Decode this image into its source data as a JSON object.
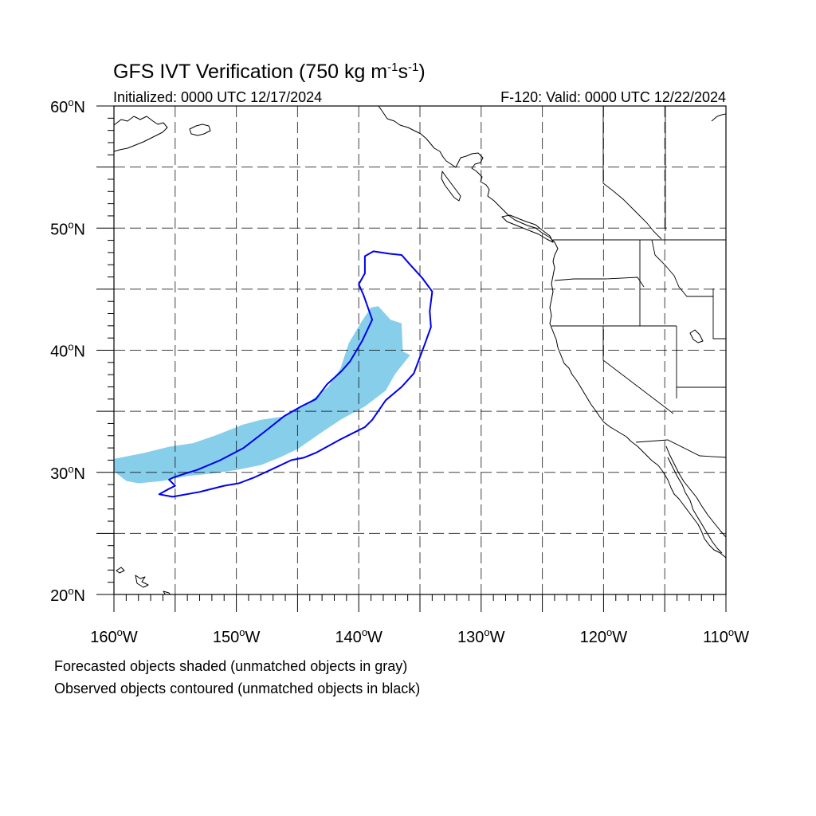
{
  "title": {
    "main": "GFS IVT Verification (750 kg m",
    "unit_exp1": "-1",
    "unit_mid": "s",
    "unit_exp2": "-1",
    "unit_close": ")"
  },
  "subtitle": {
    "initialized": "Initialized: 0000 UTC 12/17/2024",
    "valid": "F-120: Valid: 0000 UTC 12/22/2024"
  },
  "map": {
    "lon_range": [
      -160,
      -110
    ],
    "lat_range": [
      20,
      60
    ],
    "lon_ticks": [
      {
        "value": -160,
        "label": "160",
        "hemi": "W"
      },
      {
        "value": -150,
        "label": "150",
        "hemi": "W"
      },
      {
        "value": -140,
        "label": "140",
        "hemi": "W"
      },
      {
        "value": -130,
        "label": "130",
        "hemi": "W"
      },
      {
        "value": -120,
        "label": "120",
        "hemi": "W"
      },
      {
        "value": -110,
        "label": "110",
        "hemi": "W"
      }
    ],
    "lat_ticks": [
      {
        "value": 60,
        "label": "60",
        "hemi": "N"
      },
      {
        "value": 50,
        "label": "50",
        "hemi": "N"
      },
      {
        "value": 40,
        "label": "40",
        "hemi": "N"
      },
      {
        "value": 30,
        "label": "30",
        "hemi": "N"
      },
      {
        "value": 20,
        "label": "20",
        "hemi": "N"
      }
    ],
    "degree_symbol": "o",
    "grid_interval_deg": 5,
    "forecast_fill_color": "#87ceeb",
    "observed_contour_color": "#0000ee"
  },
  "forecast_object": {
    "name": "Forecasted object (matched)",
    "polygon": [
      [
        -160,
        31.1
      ],
      [
        -157.5,
        31.6
      ],
      [
        -155.5,
        32.1
      ],
      [
        -153.5,
        32.4
      ],
      [
        -151.5,
        33.1
      ],
      [
        -149.5,
        33.9
      ],
      [
        -148,
        34.3
      ],
      [
        -146,
        34.6
      ],
      [
        -144,
        35.8
      ],
      [
        -142.5,
        37
      ],
      [
        -141.5,
        38.5
      ],
      [
        -140.8,
        40.6
      ],
      [
        -139.8,
        42.3
      ],
      [
        -139,
        43.5
      ],
      [
        -138.4,
        43.6
      ],
      [
        -137.4,
        42.5
      ],
      [
        -136.5,
        42.2
      ],
      [
        -136.4,
        39.9
      ],
      [
        -135.8,
        39.6
      ],
      [
        -137,
        38.1
      ],
      [
        -137.8,
        36.7
      ],
      [
        -139.5,
        35.4
      ],
      [
        -141.5,
        34.3
      ],
      [
        -143,
        33.3
      ],
      [
        -145,
        31.9
      ],
      [
        -146.5,
        31.2
      ],
      [
        -148,
        30.6
      ],
      [
        -150,
        30.2
      ],
      [
        -152,
        29.9
      ],
      [
        -154,
        29.7
      ],
      [
        -156,
        29.3
      ],
      [
        -158,
        29.1
      ],
      [
        -159,
        29.3
      ],
      [
        -160,
        30.1
      ]
    ]
  },
  "observed_object": {
    "name": "Observed object (matched)",
    "polygon": [
      [
        -156.3,
        28.2
      ],
      [
        -155.2,
        28.0
      ],
      [
        -153.0,
        28.4
      ],
      [
        -151.0,
        28.9
      ],
      [
        -149.8,
        29.1
      ],
      [
        -148.5,
        29.6
      ],
      [
        -147.0,
        30.3
      ],
      [
        -145.5,
        31.0
      ],
      [
        -144.5,
        31.2
      ],
      [
        -143.5,
        31.6
      ],
      [
        -141.5,
        32.7
      ],
      [
        -140.5,
        33.2
      ],
      [
        -139.5,
        33.7
      ],
      [
        -138.9,
        34.3
      ],
      [
        -137.8,
        35.9
      ],
      [
        -136.5,
        37.0
      ],
      [
        -135.5,
        38.1
      ],
      [
        -134.6,
        40.5
      ],
      [
        -134.1,
        41.9
      ],
      [
        -134.2,
        43.2
      ],
      [
        -134,
        44.8
      ],
      [
        -134.8,
        45.9
      ],
      [
        -135.8,
        47
      ],
      [
        -136.5,
        47.8
      ],
      [
        -137.5,
        47.9
      ],
      [
        -138.8,
        48.1
      ],
      [
        -139.5,
        47.7
      ],
      [
        -139.5,
        46.3
      ],
      [
        -140,
        45.4
      ],
      [
        -139.6,
        44.5
      ],
      [
        -138.9,
        42.5
      ],
      [
        -139.7,
        40.8
      ],
      [
        -140.7,
        39.1
      ],
      [
        -141.4,
        38.3
      ],
      [
        -142.6,
        37.2
      ],
      [
        -143.5,
        36.0
      ],
      [
        -144.7,
        35.4
      ],
      [
        -146.1,
        34.6
      ],
      [
        -147.6,
        33.4
      ],
      [
        -149.4,
        32.0
      ],
      [
        -151.3,
        31.0
      ],
      [
        -153.2,
        30.2
      ],
      [
        -154.2,
        29.9
      ],
      [
        -155.1,
        29.6
      ],
      [
        -155.5,
        29.4
      ],
      [
        -155.0,
        28.9
      ],
      [
        -155.6,
        28.6
      ]
    ]
  },
  "footnotes": [
    "Forecasted objects shaded (unmatched objects in gray)",
    "Observed objects contoured (unmatched objects in black)"
  ]
}
